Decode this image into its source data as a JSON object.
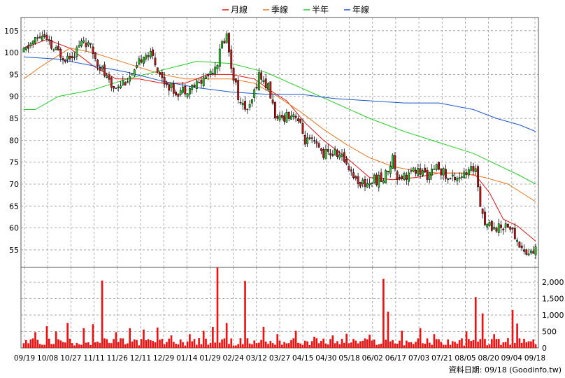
{
  "chart_data": [
    {
      "type": "candlestick",
      "legend": [
        {
          "name": "月線",
          "color": "#e01010"
        },
        {
          "name": "季線",
          "color": "#e87820"
        },
        {
          "name": "半年",
          "color": "#22cc22"
        },
        {
          "name": "年線",
          "color": "#1a56c8"
        }
      ],
      "legend_placement": "top-center",
      "grid": true,
      "y_ticks": [
        55,
        60,
        65,
        70,
        75,
        80,
        85,
        90,
        95,
        100,
        105
      ],
      "ylim": [
        51,
        108
      ],
      "x_ticks": [
        "09/19",
        "10/08",
        "10/27",
        "11/11",
        "11/26",
        "12/11",
        "12/29",
        "01/14",
        "01/29",
        "02/24",
        "03/12",
        "03/27",
        "04/15",
        "04/30",
        "05/18",
        "06/02",
        "06/17",
        "07/03",
        "07/21",
        "08/05",
        "08/20",
        "09/04",
        "09/18"
      ],
      "up_color": "#22cc22",
      "down_color": "#c81414",
      "price_anchors": [
        [
          0,
          100
        ],
        [
          3,
          102
        ],
        [
          8,
          104
        ],
        [
          12,
          101
        ],
        [
          18,
          99
        ],
        [
          22,
          100
        ],
        [
          26,
          103
        ],
        [
          30,
          100
        ],
        [
          34,
          96
        ],
        [
          38,
          92
        ],
        [
          42,
          93
        ],
        [
          48,
          95
        ],
        [
          52,
          100
        ],
        [
          56,
          99
        ],
        [
          60,
          94
        ],
        [
          66,
          91
        ],
        [
          72,
          92
        ],
        [
          76,
          93
        ],
        [
          80,
          95
        ],
        [
          84,
          98
        ],
        [
          86,
          102
        ],
        [
          88,
          104
        ],
        [
          90,
          97
        ],
        [
          94,
          88
        ],
        [
          98,
          87
        ],
        [
          102,
          95
        ],
        [
          106,
          92
        ],
        [
          110,
          84
        ],
        [
          114,
          86
        ],
        [
          118,
          86
        ],
        [
          122,
          80
        ],
        [
          126,
          79
        ],
        [
          130,
          77
        ],
        [
          136,
          77
        ],
        [
          140,
          75
        ],
        [
          144,
          71
        ],
        [
          148,
          70
        ],
        [
          152,
          71
        ],
        [
          156,
          71
        ],
        [
          160,
          76
        ],
        [
          162,
          72
        ],
        [
          166,
          72
        ],
        [
          170,
          73
        ],
        [
          176,
          72
        ],
        [
          180,
          74
        ],
        [
          184,
          71
        ],
        [
          188,
          72
        ],
        [
          192,
          72
        ],
        [
          196,
          74
        ],
        [
          198,
          66
        ],
        [
          200,
          61
        ],
        [
          206,
          60
        ],
        [
          210,
          61
        ],
        [
          214,
          57
        ],
        [
          218,
          54
        ],
        [
          222,
          55
        ]
      ],
      "moving_averages": {
        "月線": [
          [
            0,
            101
          ],
          [
            10,
            103
          ],
          [
            20,
            101
          ],
          [
            30,
            97
          ],
          [
            40,
            94
          ],
          [
            50,
            94
          ],
          [
            60,
            93
          ],
          [
            70,
            93
          ],
          [
            80,
            95
          ],
          [
            90,
            95
          ],
          [
            100,
            94
          ],
          [
            108,
            91
          ],
          [
            114,
            89
          ],
          [
            122,
            84
          ],
          [
            130,
            80
          ],
          [
            140,
            76
          ],
          [
            150,
            71.5
          ],
          [
            160,
            71
          ],
          [
            170,
            71.5
          ],
          [
            180,
            72.5
          ],
          [
            190,
            72.5
          ],
          [
            196,
            72
          ],
          [
            202,
            68
          ],
          [
            208,
            62
          ],
          [
            214,
            60.5
          ],
          [
            222,
            57
          ]
        ],
        "季線": [
          [
            0,
            94
          ],
          [
            8,
            97
          ],
          [
            20,
            101
          ],
          [
            30,
            100
          ],
          [
            45,
            97.5
          ],
          [
            60,
            95
          ],
          [
            70,
            94
          ],
          [
            80,
            94
          ],
          [
            90,
            94
          ],
          [
            100,
            93
          ],
          [
            110,
            90
          ],
          [
            120,
            86.5
          ],
          [
            130,
            82.5
          ],
          [
            140,
            79
          ],
          [
            150,
            76
          ],
          [
            160,
            74
          ],
          [
            170,
            73
          ],
          [
            180,
            72.5
          ],
          [
            190,
            72.5
          ],
          [
            200,
            71.5
          ],
          [
            210,
            70
          ],
          [
            222,
            66
          ]
        ],
        "半年": [
          [
            0,
            87
          ],
          [
            5,
            87
          ],
          [
            15,
            90
          ],
          [
            30,
            91.5
          ],
          [
            45,
            94
          ],
          [
            60,
            96
          ],
          [
            75,
            98
          ],
          [
            90,
            97.5
          ],
          [
            105,
            95.5
          ],
          [
            120,
            92
          ],
          [
            135,
            88.5
          ],
          [
            150,
            85
          ],
          [
            165,
            82
          ],
          [
            180,
            79.5
          ],
          [
            195,
            77
          ],
          [
            205,
            74.5
          ],
          [
            215,
            72
          ],
          [
            222,
            70
          ]
        ],
        "年線": [
          [
            0,
            99
          ],
          [
            15,
            98.5
          ],
          [
            30,
            97
          ],
          [
            45,
            95.5
          ],
          [
            60,
            93.5
          ],
          [
            75,
            92
          ],
          [
            90,
            91
          ],
          [
            105,
            90.5
          ],
          [
            120,
            90.5
          ],
          [
            135,
            89.5
          ],
          [
            150,
            89
          ],
          [
            165,
            88.5
          ],
          [
            180,
            88.5
          ],
          [
            195,
            87
          ],
          [
            205,
            85
          ],
          [
            215,
            83.5
          ],
          [
            222,
            82
          ]
        ]
      }
    },
    {
      "type": "bar",
      "series_name": "volume",
      "color": "#ee1111",
      "y_ticks": [
        0,
        500,
        1000,
        1500,
        2000
      ],
      "y_tick_labels": [
        "0",
        "500",
        "1,000",
        "1,500",
        "2,000"
      ],
      "ylim": [
        0,
        2450
      ],
      "spikes": [
        [
          3,
          260
        ],
        [
          5,
          480
        ],
        [
          10,
          660
        ],
        [
          14,
          500
        ],
        [
          19,
          760
        ],
        [
          26,
          600
        ],
        [
          30,
          720
        ],
        [
          34,
          2050
        ],
        [
          40,
          480
        ],
        [
          46,
          600
        ],
        [
          52,
          560
        ],
        [
          58,
          620
        ],
        [
          64,
          380
        ],
        [
          72,
          420
        ],
        [
          78,
          520
        ],
        [
          82,
          640
        ],
        [
          84,
          2450
        ],
        [
          88,
          760
        ],
        [
          96,
          2040
        ],
        [
          104,
          640
        ],
        [
          110,
          420
        ],
        [
          118,
          520
        ],
        [
          126,
          340
        ],
        [
          134,
          380
        ],
        [
          140,
          430
        ],
        [
          150,
          400
        ],
        [
          156,
          2100
        ],
        [
          158,
          1100
        ],
        [
          164,
          520
        ],
        [
          172,
          600
        ],
        [
          178,
          420
        ],
        [
          192,
          500
        ],
        [
          196,
          1550
        ],
        [
          199,
          1050
        ],
        [
          204,
          420
        ],
        [
          212,
          1150
        ],
        [
          214,
          740
        ]
      ],
      "base_min": 70,
      "base_max": 300
    }
  ],
  "footer": "資料日期: 09/18  (Goodinfo.tw)"
}
